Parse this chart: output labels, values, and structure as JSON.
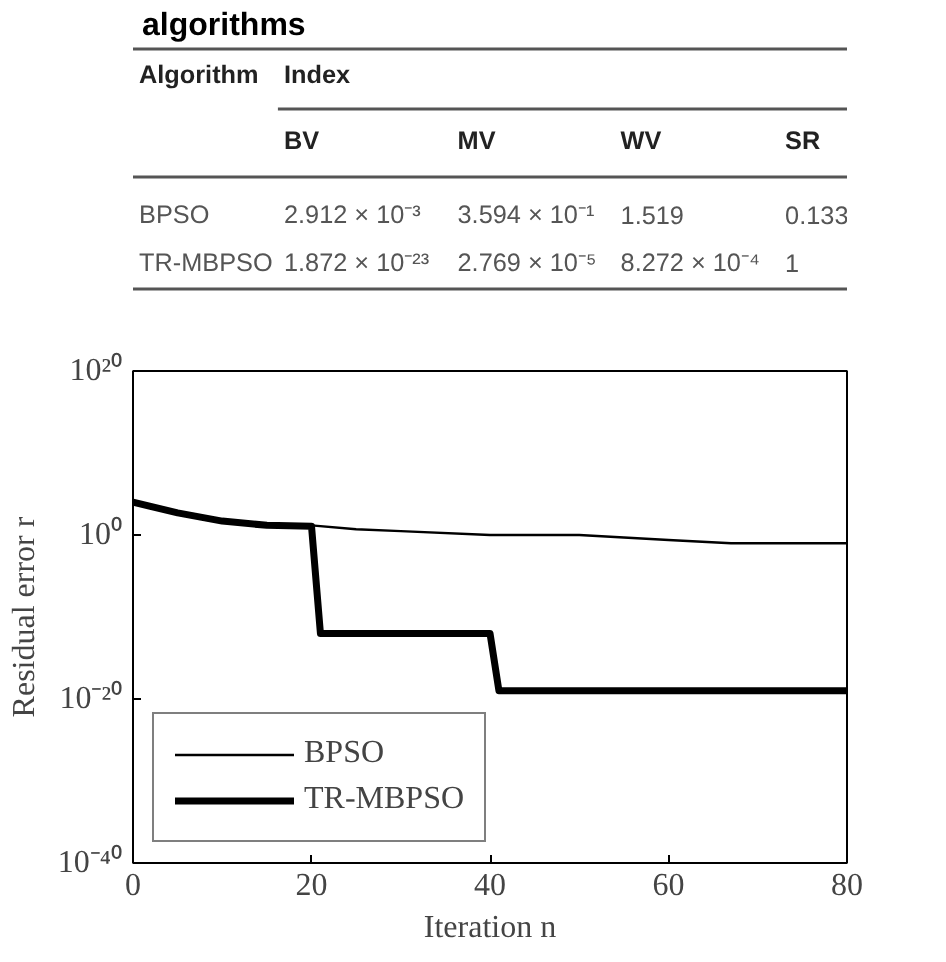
{
  "chart_data": [
    {
      "type": "other",
      "title": "algorithms",
      "annotations": [
        "Algorithm",
        "Index",
        "BV",
        "MV",
        "WV",
        "SR",
        "BPSO",
        "2.912 × 10⁻³",
        "3.594 × 10⁻¹",
        "1.519",
        "0.133",
        "TR-MBPSO",
        "1.872 × 10⁻²³",
        "2.769 × 10⁻⁵",
        "8.272 × 10⁻⁴",
        "1"
      ]
    },
    {
      "type": "line",
      "xlabel": "Iteration n",
      "ylabel": "Residual error r",
      "log": "y",
      "xlim": [
        0,
        80
      ],
      "xticks": [
        0,
        20,
        40,
        60,
        80
      ],
      "ylim": [
        1e-40,
        1e+20
      ],
      "yticks": [
        {
          "value": 1e+20,
          "label": "10²⁰"
        },
        {
          "value": 1,
          "label": "10⁰"
        },
        {
          "value": 1e-20,
          "label": "10⁻²⁰"
        },
        {
          "value": 1e-40,
          "label": "10⁻⁴⁰"
        }
      ],
      "legend": "bottom left",
      "grid": false,
      "series": [
        {
          "name": "BPSO",
          "color": "#000000",
          "x": [
            0,
            5,
            10,
            15,
            20,
            25,
            30,
            40,
            50,
            55,
            60,
            67,
            80
          ],
          "values": [
            10000,
            500,
            50,
            15,
            15,
            5,
            3,
            1,
            1,
            0.5,
            0.25,
            0.1,
            0.1
          ]
        },
        {
          "name": "TR-MBPSO",
          "color": "#000000",
          "x": [
            0,
            5,
            10,
            15,
            20,
            21,
            40,
            41,
            80
          ],
          "values": [
            10000,
            500,
            50,
            15,
            12,
            1e-12,
            1e-12,
            1e-19,
            1e-19
          ]
        }
      ]
    }
  ]
}
